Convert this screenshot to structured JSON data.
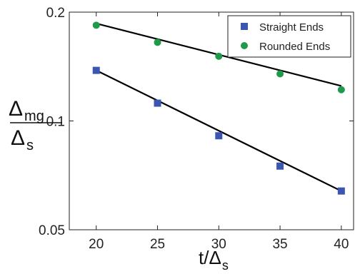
{
  "chart_data": {
    "type": "scatter",
    "xscale": "linear",
    "yscale": "log",
    "xlim": [
      17.8,
      41
    ],
    "ylim": [
      0.05,
      0.2
    ],
    "xticks": [
      20,
      25,
      30,
      35,
      40
    ],
    "yticks": [
      0.05,
      0.1,
      0.2
    ],
    "ytick_labels": [
      "0.05",
      "0.1",
      "0.2"
    ],
    "xlabel": {
      "main": "t/Δ",
      "sub": "s"
    },
    "ylabel": {
      "num_main": "Δ",
      "num_sub": "mg",
      "den_main": "Δ",
      "den_sub": "s"
    },
    "legend_position": "top-right",
    "series": [
      {
        "name": "Straight Ends",
        "marker": "square",
        "color": "#3a56b0",
        "x": [
          20,
          25,
          30,
          35,
          40
        ],
        "y": [
          0.138,
          0.112,
          0.091,
          0.075,
          0.064
        ],
        "fit": {
          "x": [
            20,
            40
          ],
          "y": [
            0.138,
            0.064
          ]
        }
      },
      {
        "name": "Rounded Ends",
        "marker": "circle",
        "color": "#1e9a4a",
        "x": [
          20,
          25,
          30,
          35,
          40
        ],
        "y": [
          0.184,
          0.165,
          0.151,
          0.135,
          0.122
        ],
        "fit": {
          "x": [
            20,
            40
          ],
          "y": [
            0.186,
            0.125
          ]
        }
      }
    ]
  }
}
